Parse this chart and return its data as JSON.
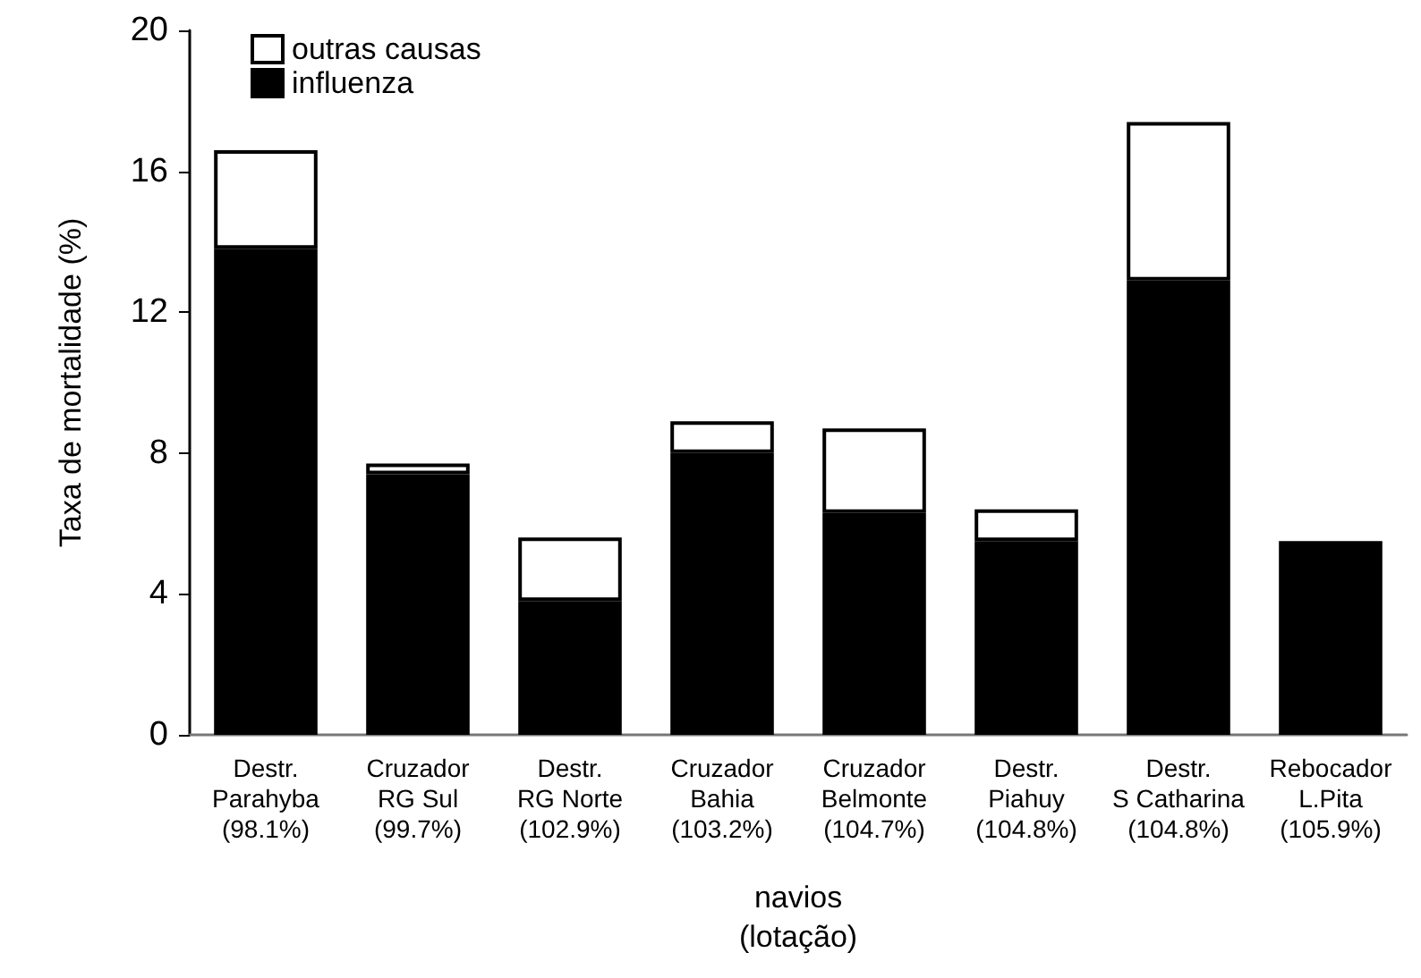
{
  "chart_data": {
    "type": "bar",
    "stacked": true,
    "categories": [
      "Destr.\nParahyba\n(98.1%)",
      "Cruzador\nRG Sul\n(99.7%)",
      "Destr.\nRG Norte\n(102.9%)",
      "Cruzador\nBahia\n(103.2%)",
      "Cruzador\nBelmonte\n(104.7%)",
      "Destr.\nPiahuy\n(104.8%)",
      "Destr.\nS Catharina\n(104.8%)",
      "Rebocador\nL.Pita\n(105.9%)"
    ],
    "series": [
      {
        "name": "influenza",
        "color": "#000000",
        "values": [
          13.8,
          7.4,
          3.8,
          8.0,
          6.3,
          5.5,
          12.9,
          5.5
        ]
      },
      {
        "name": "outras causas",
        "color": "#ffffff",
        "values": [
          2.8,
          0.3,
          1.8,
          0.9,
          2.4,
          0.9,
          4.5,
          0
        ]
      }
    ],
    "xlabel": "navios\n(lotação)",
    "ylabel": "Taxa de mortalidade (%)",
    "ylim": [
      0,
      20
    ],
    "yticks": [
      0,
      4,
      8,
      12,
      16,
      20
    ],
    "grid": false,
    "legend": "top left"
  }
}
